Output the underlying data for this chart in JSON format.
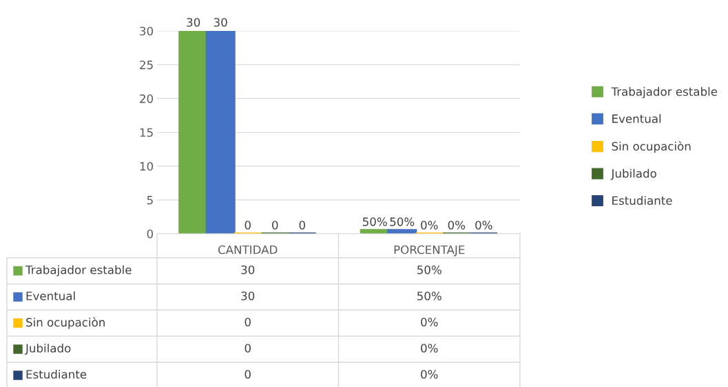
{
  "chart_data": {
    "type": "bar",
    "categories": [
      "CANTIDAD",
      "PORCENTAJE"
    ],
    "series": [
      {
        "name": "Trabajador estable",
        "color": "#70ad47",
        "values": [
          30,
          0.5
        ],
        "value_labels": [
          "30",
          "50%"
        ]
      },
      {
        "name": "Eventual",
        "color": "#4472c4",
        "values": [
          30,
          0.5
        ],
        "value_labels": [
          "30",
          "50%"
        ]
      },
      {
        "name": "Sin ocupaciòn",
        "color": "#ffc000",
        "values": [
          0,
          0
        ],
        "value_labels": [
          "0",
          "0%"
        ]
      },
      {
        "name": "Jubilado",
        "color": "#43682b",
        "values": [
          0,
          0
        ],
        "value_labels": [
          "0",
          "0%"
        ]
      },
      {
        "name": "Estudiante",
        "color": "#264478",
        "values": [
          0,
          0
        ],
        "value_labels": [
          "0",
          "0%"
        ]
      }
    ],
    "ylim": [
      0,
      30
    ],
    "yticks": [
      0,
      5,
      10,
      15,
      20,
      25,
      30
    ],
    "grid": "y",
    "legend": "right"
  }
}
